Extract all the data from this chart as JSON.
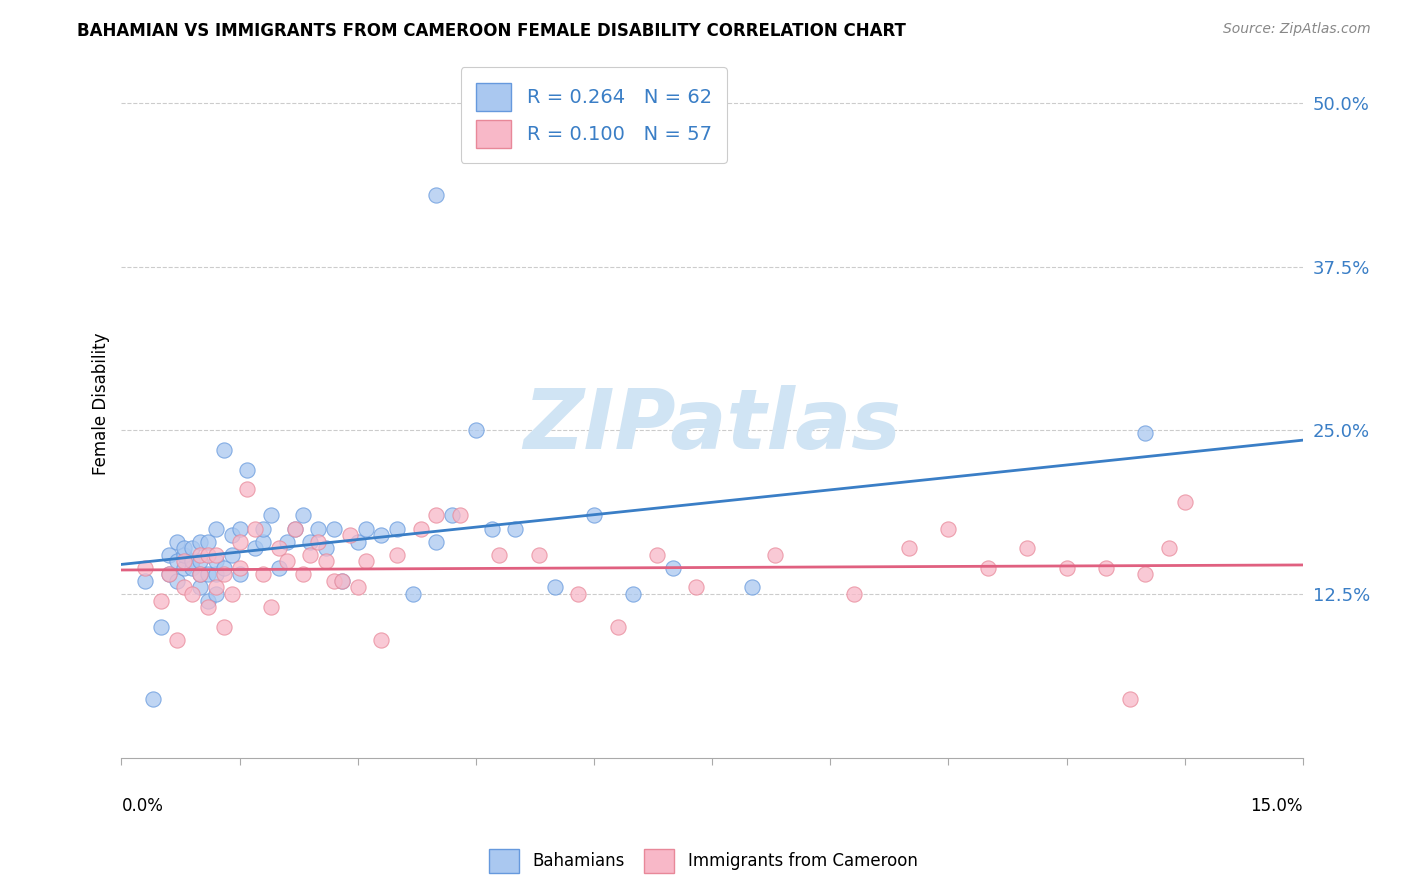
{
  "title": "BAHAMIAN VS IMMIGRANTS FROM CAMEROON FEMALE DISABILITY CORRELATION CHART",
  "source": "Source: ZipAtlas.com",
  "ylabel": "Female Disability",
  "yticks": [
    "12.5%",
    "25.0%",
    "37.5%",
    "50.0%"
  ],
  "ytick_vals": [
    0.125,
    0.25,
    0.375,
    0.5
  ],
  "xlim": [
    0.0,
    0.15
  ],
  "ylim": [
    0.0,
    0.54
  ],
  "legend_blue_label": "R = 0.264   N = 62",
  "legend_pink_label": "R = 0.100   N = 57",
  "bahamians_label": "Bahamians",
  "cameroon_label": "Immigrants from Cameroon",
  "blue_fill": "#aac8f0",
  "blue_edge": "#6699dd",
  "pink_fill": "#f8b8c8",
  "pink_edge": "#e88899",
  "blue_line_color": "#3A7EC6",
  "pink_line_color": "#E06080",
  "watermark_color": "#d0e4f4",
  "watermark": "ZIPatlas",
  "blue_scatter_x": [
    0.003,
    0.004,
    0.005,
    0.006,
    0.006,
    0.007,
    0.007,
    0.007,
    0.008,
    0.008,
    0.008,
    0.009,
    0.009,
    0.009,
    0.01,
    0.01,
    0.01,
    0.01,
    0.011,
    0.011,
    0.011,
    0.012,
    0.012,
    0.012,
    0.012,
    0.013,
    0.013,
    0.014,
    0.014,
    0.015,
    0.015,
    0.016,
    0.017,
    0.018,
    0.018,
    0.019,
    0.02,
    0.021,
    0.022,
    0.023,
    0.024,
    0.025,
    0.026,
    0.027,
    0.028,
    0.03,
    0.031,
    0.033,
    0.035,
    0.037,
    0.04,
    0.042,
    0.045,
    0.047,
    0.05,
    0.055,
    0.06,
    0.065,
    0.07,
    0.08,
    0.04,
    0.13
  ],
  "blue_scatter_y": [
    0.135,
    0.045,
    0.1,
    0.14,
    0.155,
    0.135,
    0.15,
    0.165,
    0.145,
    0.155,
    0.16,
    0.145,
    0.15,
    0.16,
    0.13,
    0.14,
    0.15,
    0.165,
    0.12,
    0.14,
    0.165,
    0.125,
    0.14,
    0.15,
    0.175,
    0.235,
    0.145,
    0.155,
    0.17,
    0.14,
    0.175,
    0.22,
    0.16,
    0.165,
    0.175,
    0.185,
    0.145,
    0.165,
    0.175,
    0.185,
    0.165,
    0.175,
    0.16,
    0.175,
    0.135,
    0.165,
    0.175,
    0.17,
    0.175,
    0.125,
    0.165,
    0.185,
    0.25,
    0.175,
    0.175,
    0.13,
    0.185,
    0.125,
    0.145,
    0.13,
    0.43,
    0.248
  ],
  "pink_scatter_x": [
    0.003,
    0.005,
    0.006,
    0.007,
    0.008,
    0.008,
    0.009,
    0.01,
    0.01,
    0.011,
    0.011,
    0.012,
    0.012,
    0.013,
    0.013,
    0.014,
    0.015,
    0.015,
    0.016,
    0.017,
    0.018,
    0.019,
    0.02,
    0.021,
    0.022,
    0.023,
    0.024,
    0.025,
    0.026,
    0.027,
    0.028,
    0.029,
    0.03,
    0.031,
    0.033,
    0.035,
    0.038,
    0.04,
    0.043,
    0.048,
    0.053,
    0.058,
    0.063,
    0.068,
    0.073,
    0.083,
    0.093,
    0.1,
    0.105,
    0.11,
    0.115,
    0.12,
    0.125,
    0.128,
    0.13,
    0.133,
    0.135
  ],
  "pink_scatter_y": [
    0.145,
    0.12,
    0.14,
    0.09,
    0.13,
    0.15,
    0.125,
    0.14,
    0.155,
    0.115,
    0.155,
    0.13,
    0.155,
    0.1,
    0.14,
    0.125,
    0.145,
    0.165,
    0.205,
    0.175,
    0.14,
    0.115,
    0.16,
    0.15,
    0.175,
    0.14,
    0.155,
    0.165,
    0.15,
    0.135,
    0.135,
    0.17,
    0.13,
    0.15,
    0.09,
    0.155,
    0.175,
    0.185,
    0.185,
    0.155,
    0.155,
    0.125,
    0.1,
    0.155,
    0.13,
    0.155,
    0.125,
    0.16,
    0.175,
    0.145,
    0.16,
    0.145,
    0.145,
    0.045,
    0.14,
    0.16,
    0.195
  ]
}
